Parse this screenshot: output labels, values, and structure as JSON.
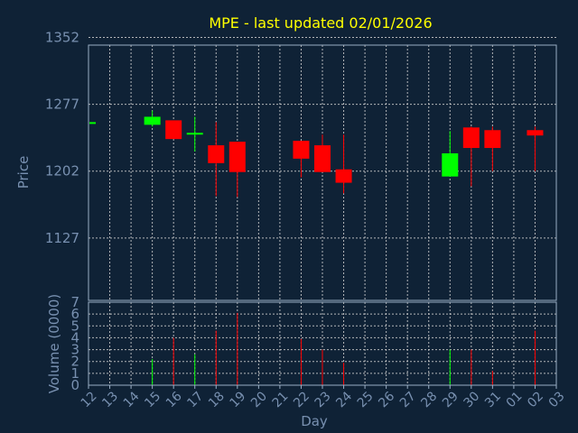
{
  "chart_data": {
    "type": "candlestick",
    "title": "MPE - last updated 02/01/2026",
    "xlabel": "Day",
    "price_panel": {
      "ylabel": "Price",
      "yticks": [
        1127,
        1202,
        1277,
        1352
      ],
      "ylim": [
        1057,
        1343.4
      ],
      "grid": true
    },
    "volume_panel": {
      "ylabel": "Volume (0000)",
      "yticks": [
        0,
        1,
        2,
        3,
        4,
        5,
        6,
        7
      ],
      "ylim": [
        0,
        7
      ],
      "grid": true
    },
    "x_tick_labels": [
      "12",
      "13",
      "14",
      "15",
      "16",
      "17",
      "18",
      "19",
      "20",
      "21",
      "22",
      "23",
      "24",
      "25",
      "26",
      "27",
      "28",
      "29",
      "30",
      "31",
      "01",
      "02",
      "03"
    ],
    "candles": [
      {
        "day": "12",
        "open": 1255,
        "close": 1257,
        "high": 1257,
        "low": 1255,
        "volume": 0
      },
      {
        "day": "15",
        "open": 1254,
        "close": 1263,
        "high": 1270,
        "low": 1252,
        "volume": 2.2
      },
      {
        "day": "16",
        "open": 1259,
        "close": 1238,
        "high": 1259,
        "low": 1238,
        "volume": 4.0
      },
      {
        "day": "17",
        "open": 1244,
        "close": 1245,
        "high": 1263,
        "low": 1224,
        "volume": 2.6
      },
      {
        "day": "18",
        "open": 1231,
        "close": 1211,
        "high": 1257,
        "low": 1174,
        "volume": 4.6
      },
      {
        "day": "19",
        "open": 1235,
        "close": 1201,
        "high": 1235,
        "low": 1173,
        "volume": 6.1
      },
      {
        "day": "22",
        "open": 1236,
        "close": 1216,
        "high": 1236,
        "low": 1195,
        "volume": 3.9
      },
      {
        "day": "23",
        "open": 1231,
        "close": 1201,
        "high": 1243,
        "low": 1201,
        "volume": 3.0
      },
      {
        "day": "24",
        "open": 1204,
        "close": 1189,
        "high": 1243,
        "low": 1177,
        "volume": 1.9
      },
      {
        "day": "29",
        "open": 1196,
        "close": 1222,
        "high": 1247,
        "low": 1196,
        "volume": 3.0
      },
      {
        "day": "30",
        "open": 1251,
        "close": 1228,
        "high": 1252,
        "low": 1185,
        "volume": 3.0
      },
      {
        "day": "31",
        "open": 1248,
        "close": 1228,
        "high": 1252,
        "low": 1202,
        "volume": 1.2
      },
      {
        "day": "02",
        "open": 1248,
        "close": 1242,
        "high": 1252,
        "low": 1202,
        "volume": 4.6
      }
    ],
    "colors": {
      "background": "#0f2236",
      "grid": "#d0d0d0",
      "axis": "#9aaec4",
      "title": "#ffff00",
      "label": "#7890b0",
      "up": "#00ff00",
      "down": "#ff0000"
    }
  }
}
